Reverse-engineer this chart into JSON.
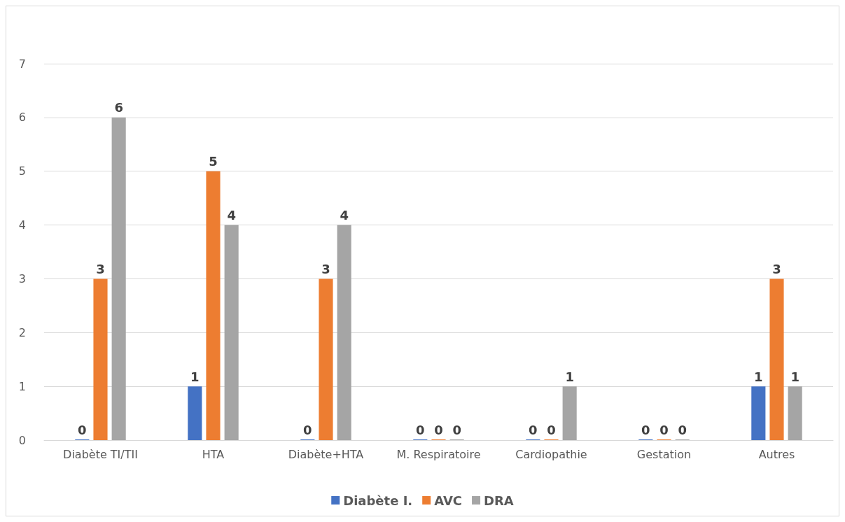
{
  "chart_data": {
    "type": "bar",
    "categories": [
      "Diabète TI/TII",
      "HTA",
      "Diabète+HTA",
      "M. Respiratoire",
      "Cardiopathie",
      "Gestation",
      "Autres"
    ],
    "series": [
      {
        "name": "Diabète I.",
        "color": "#4472c4",
        "values": [
          0,
          1,
          0,
          0,
          0,
          0,
          1
        ]
      },
      {
        "name": "AVC",
        "color": "#ed7d31",
        "values": [
          3,
          5,
          3,
          0,
          0,
          0,
          3
        ]
      },
      {
        "name": "DRA",
        "color": "#a5a5a5",
        "values": [
          6,
          4,
          4,
          0,
          1,
          0,
          1
        ]
      }
    ],
    "ylim": [
      0,
      7
    ],
    "yticks": [
      0,
      1,
      2,
      3,
      4,
      5,
      6,
      7
    ],
    "grid": "y",
    "legend": "bottom",
    "data_labels": true
  }
}
